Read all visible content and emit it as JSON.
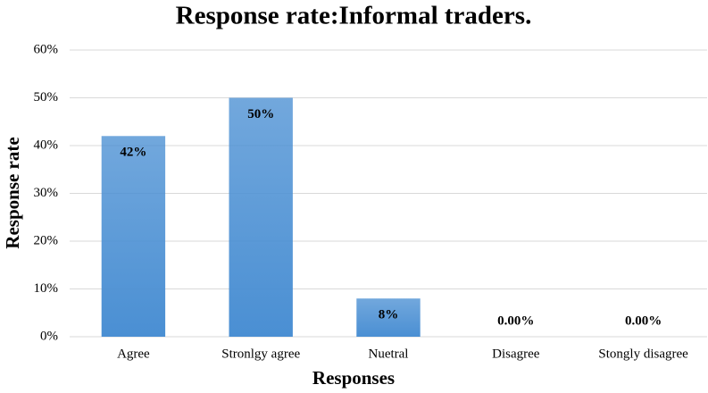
{
  "chart_data": {
    "type": "bar",
    "title": "Response rate:Informal traders.",
    "x_label": "Responses",
    "y_label": "Response rate",
    "categories": [
      "Agree",
      "Stronlgy agree",
      "Nuetral",
      "Disagree",
      "Stongly disagree"
    ],
    "values": [
      42,
      50,
      8,
      0,
      0
    ],
    "value_labels": [
      "42%",
      "50%",
      "8%",
      "0.00%",
      "0.00%"
    ],
    "color": "#4a8fd3",
    "ylim": [
      0,
      60
    ],
    "yticks": [
      {
        "value": 0,
        "label": "0%"
      },
      {
        "value": 10,
        "label": "10%"
      },
      {
        "value": 20,
        "label": "20%"
      },
      {
        "value": 30,
        "label": "30%"
      },
      {
        "value": 40,
        "label": "40%"
      },
      {
        "value": 50,
        "label": "50%"
      },
      {
        "value": 60,
        "label": "60%"
      }
    ],
    "grid": true
  }
}
